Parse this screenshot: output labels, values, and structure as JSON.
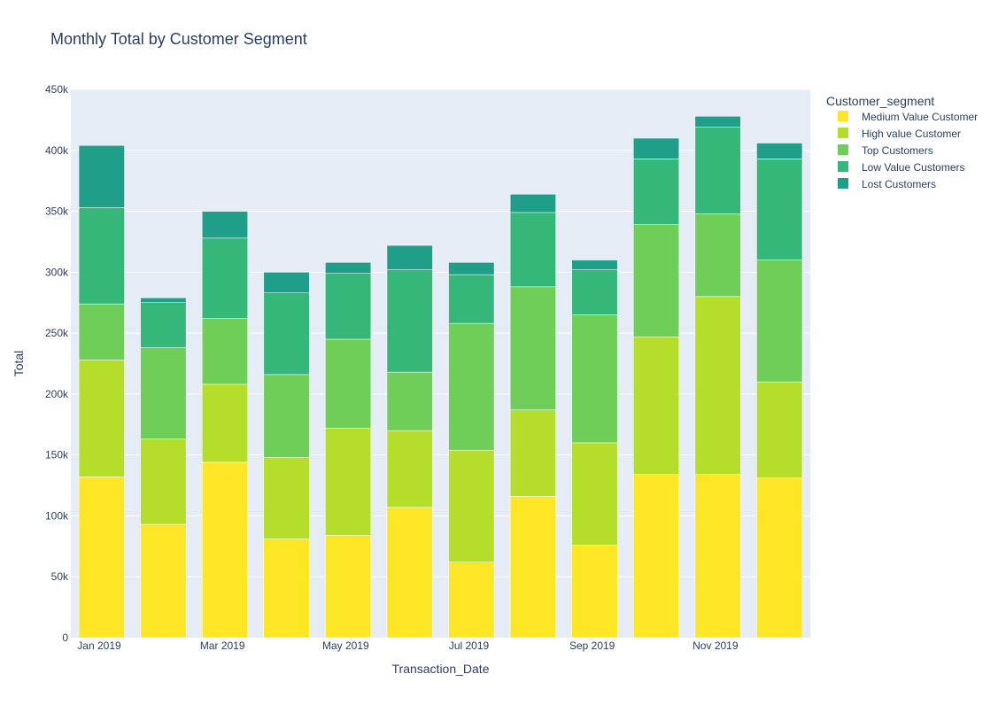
{
  "chart_data": {
    "type": "bar",
    "barmode": "stack",
    "title": "Monthly Total by Customer Segment",
    "xlabel": "Transaction_Date",
    "ylabel": "Total",
    "ylim": [
      0,
      450000
    ],
    "grid": true,
    "legend_title": "Customer_segment",
    "legend_position": "top-right, outside plot",
    "categories": [
      "2019-01",
      "2019-02",
      "2019-03",
      "2019-04",
      "2019-05",
      "2019-06",
      "2019-07",
      "2019-08",
      "2019-09",
      "2019-10",
      "2019-11",
      "2019-12"
    ],
    "x_tick_labels": [
      "Jan 2019",
      "Mar 2019",
      "May 2019",
      "Jul 2019",
      "Sep 2019",
      "Nov 2019"
    ],
    "x_tick_months": [
      "2019-01",
      "2019-03",
      "2019-05",
      "2019-07",
      "2019-09",
      "2019-11"
    ],
    "y_ticks": [
      0,
      50000,
      100000,
      150000,
      200000,
      250000,
      300000,
      350000,
      400000,
      450000
    ],
    "y_tick_labels": [
      "0",
      "50k",
      "100k",
      "150k",
      "200k",
      "250k",
      "300k",
      "350k",
      "400k",
      "450k"
    ],
    "series": [
      {
        "name": "Medium Value Customer",
        "color": "#fde725",
        "values": [
          132000,
          93000,
          144000,
          81000,
          84000,
          107000,
          62000,
          116000,
          76000,
          134000,
          134000,
          131000
        ]
      },
      {
        "name": "High value Customer",
        "color": "#b5de2b",
        "values": [
          96000,
          70000,
          64000,
          67000,
          88000,
          63000,
          92000,
          71000,
          84000,
          113000,
          146000,
          79000
        ]
      },
      {
        "name": "Top Customers",
        "color": "#6ece58",
        "values": [
          46000,
          75000,
          54000,
          68000,
          73000,
          48000,
          104000,
          101000,
          105000,
          92000,
          68000,
          100000
        ]
      },
      {
        "name": "Low Value Customers",
        "color": "#35b779",
        "values": [
          79000,
          37000,
          66000,
          67000,
          54000,
          84000,
          40000,
          61000,
          37000,
          54000,
          71000,
          83000
        ]
      },
      {
        "name": "Lost Customers",
        "color": "#1f9e89",
        "values": [
          51000,
          4000,
          22000,
          17000,
          9000,
          20000,
          10000,
          15000,
          8000,
          17000,
          9000,
          13000
        ]
      }
    ]
  }
}
